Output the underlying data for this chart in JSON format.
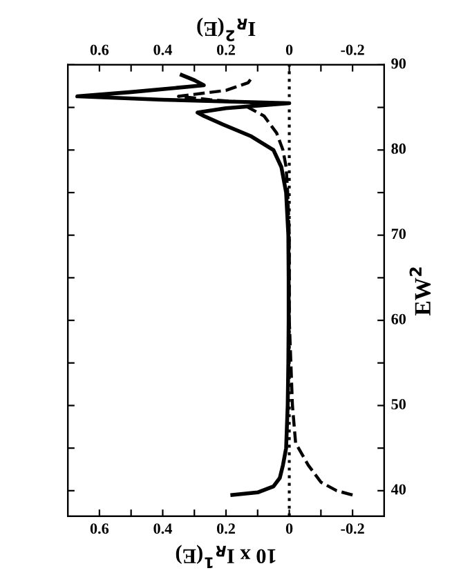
{
  "chart_data": {
    "type": "line",
    "xlabel": "10 x I$_{R}$$^{1}$(E)",
    "x2label": "I$_{R}$$^{2}$(E)",
    "ylabel": "EW$^{2}$",
    "ylim": [
      37,
      90
    ],
    "yticks": [
      40,
      {
        "value": 45,
        "label": null
      },
      50,
      {
        "value": 55,
        "label": null
      },
      60,
      {
        "value": 65,
        "label": null
      },
      70,
      {
        "value": 75,
        "label": null
      },
      80,
      {
        "value": 85,
        "label": null
      },
      90
    ],
    "xlim": [
      0.7,
      -0.3
    ],
    "xticks": [
      -0.2,
      {
        "value": -0.1,
        "label": null
      },
      0,
      {
        "value": 0.1,
        "label": null
      },
      0.2,
      {
        "value": 0.3,
        "label": null
      },
      0.4,
      {
        "value": 0.5,
        "label": null
      },
      0.6
    ],
    "x2lim": [
      0.7,
      -0.3
    ],
    "x2ticks": [
      -0.2,
      {
        "value": -0.1,
        "label": null
      },
      0,
      {
        "value": 0.1,
        "label": null
      },
      0.2,
      {
        "value": 0.3,
        "label": null
      },
      0.4,
      {
        "value": 0.5,
        "label": null
      },
      0.6
    ],
    "grid": false,
    "marker": "none",
    "ref_lines": [
      {
        "axis": "x",
        "value": 0,
        "label": null,
        "color": "#000000",
        "line_style": "dotted"
      }
    ],
    "series": [
      {
        "color": "#000000",
        "line_style": "solid",
        "values": [
          39.5,
          39.8,
          40.5,
          41.5,
          43,
          45,
          50,
          55,
          60,
          65,
          70,
          75,
          78,
          80,
          81.6,
          83,
          84,
          84.4,
          84.9,
          85.5,
          85.9,
          86.3,
          86.8,
          87.6,
          88.2,
          88.8
        ],
        "x": [
          0.18,
          0.1,
          0.05,
          0.03,
          0.02,
          0.01,
          0.005,
          0.003,
          0.002,
          0.002,
          0.003,
          0.01,
          0.025,
          0.05,
          0.12,
          0.21,
          0.27,
          0.29,
          0.2,
          0.0,
          0.4,
          0.67,
          0.5,
          0.27,
          0.3,
          0.34
        ]
      },
      {
        "color": "#000000",
        "line_style": "dashed",
        "axis": "x2",
        "values": [
          39.5,
          40,
          41,
          43,
          45.6,
          50,
          55,
          60,
          65,
          70,
          75,
          78,
          80,
          82,
          84,
          85,
          85.5,
          85.9,
          86.3,
          87,
          87.9,
          88.4
        ],
        "x": [
          -0.2,
          -0.15,
          -0.1,
          -0.06,
          -0.02,
          -0.01,
          -0.005,
          0.0,
          0.0,
          0.0,
          0.005,
          0.01,
          0.02,
          0.04,
          0.08,
          0.13,
          0.1,
          0.25,
          0.35,
          0.2,
          0.13,
          0.12
        ]
      }
    ]
  }
}
